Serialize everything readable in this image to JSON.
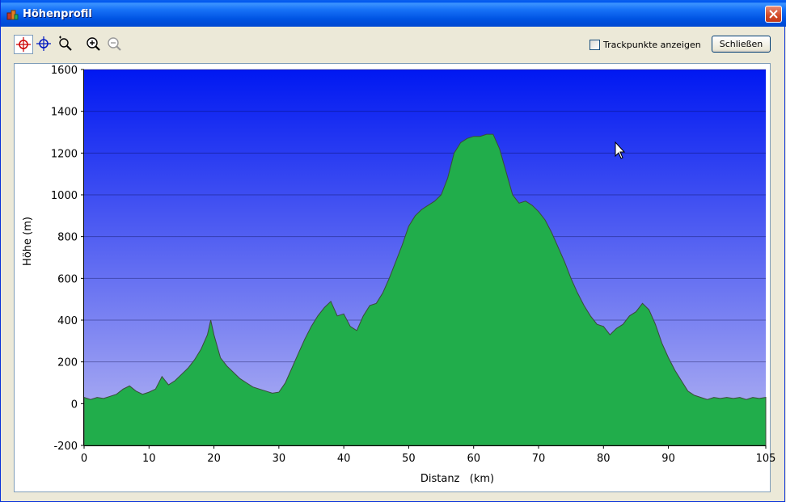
{
  "window": {
    "title": "Höhenprofil",
    "accent_color": "#0054e3"
  },
  "toolbar": {
    "tools": [
      {
        "name": "select-crosshair-red",
        "active": true
      },
      {
        "name": "crosshair-blue",
        "active": false
      },
      {
        "name": "zoom-region",
        "active": false
      },
      {
        "name": "zoom-in",
        "active": false
      },
      {
        "name": "zoom-out",
        "active": false
      }
    ],
    "show_trackpoints_label": "Trackpunkte anzeigen",
    "show_trackpoints_checked": false,
    "close_label": "Schließen"
  },
  "chart_data": {
    "type": "area",
    "xlabel": "Distanz   (km)",
    "ylabel": "Höhe (m)",
    "xlim": [
      0,
      105
    ],
    "ylim": [
      -200,
      1600
    ],
    "x_ticks": [
      0,
      10,
      20,
      30,
      40,
      50,
      60,
      70,
      80,
      90,
      105
    ],
    "y_ticks": [
      -200,
      0,
      200,
      400,
      600,
      800,
      1000,
      1200,
      1400,
      1600
    ],
    "grid": true,
    "colors": {
      "background_top": "#0018f2",
      "background_bottom": "#b8b8f2",
      "fill_top": "#1db34a",
      "fill_mid": "#1a8a3a",
      "fill_line": "#3b4b3b"
    },
    "series": [
      {
        "x": [
          0,
          1,
          2,
          3,
          4,
          5,
          6,
          7,
          8,
          9,
          10,
          11,
          12,
          13,
          14,
          15,
          16,
          17,
          18,
          19,
          19.5,
          20,
          21,
          22,
          23,
          24,
          25,
          26,
          27,
          28,
          29,
          30,
          31,
          32,
          33,
          34,
          35,
          36,
          37,
          38,
          39,
          40,
          41,
          42,
          43,
          44,
          45,
          46,
          47,
          48,
          49,
          50,
          51,
          52,
          53,
          54,
          55,
          56,
          57,
          58,
          59,
          60,
          61,
          62,
          63,
          64,
          65,
          66,
          67,
          68,
          69,
          70,
          71,
          72,
          73,
          74,
          75,
          76,
          77,
          78,
          79,
          80,
          81,
          82,
          83,
          84,
          85,
          86,
          87,
          88,
          89,
          90,
          91,
          92,
          93,
          94,
          95,
          96,
          97,
          98,
          99,
          100,
          101,
          102,
          103,
          104,
          105
        ],
        "y": [
          30,
          20,
          30,
          25,
          35,
          45,
          70,
          85,
          60,
          45,
          55,
          70,
          130,
          90,
          110,
          140,
          170,
          210,
          260,
          330,
          400,
          330,
          220,
          180,
          150,
          120,
          100,
          80,
          70,
          60,
          50,
          55,
          100,
          170,
          240,
          310,
          370,
          420,
          460,
          490,
          420,
          430,
          370,
          350,
          420,
          470,
          480,
          530,
          600,
          680,
          760,
          850,
          900,
          930,
          950,
          970,
          1000,
          1080,
          1200,
          1250,
          1270,
          1280,
          1280,
          1290,
          1290,
          1220,
          1110,
          1000,
          960,
          970,
          950,
          920,
          880,
          820,
          750,
          680,
          600,
          530,
          470,
          420,
          380,
          370,
          330,
          360,
          380,
          420,
          440,
          480,
          450,
          380,
          290,
          220,
          160,
          110,
          60,
          40,
          30,
          20,
          30,
          25,
          30,
          25,
          30,
          20,
          30,
          25,
          30
        ]
      }
    ]
  }
}
